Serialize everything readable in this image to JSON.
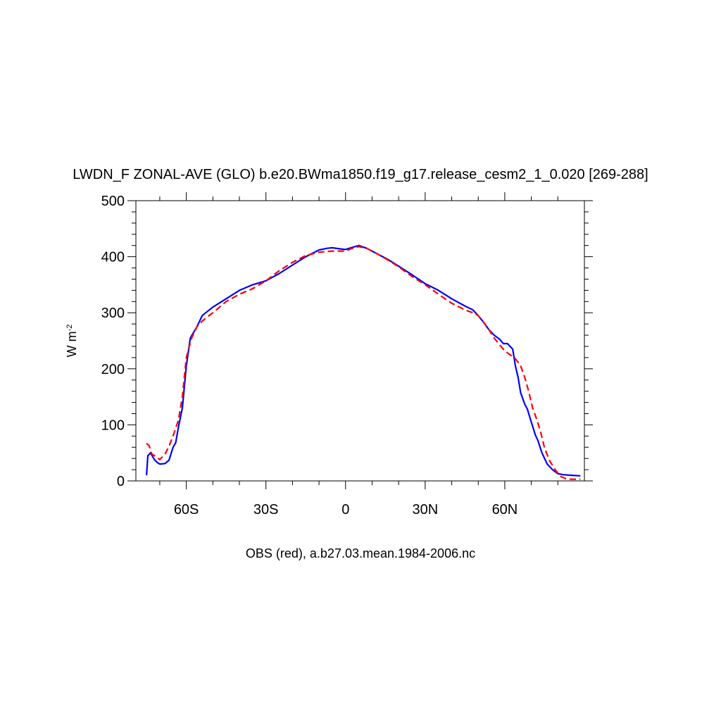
{
  "chart_data": {
    "type": "line",
    "title": "LWDN_F ZONAL-AVE (GLO) b.e20.BWma1850.f19_g17.release_cesm2_1_0.020 [269-288]",
    "ylabel": "W m",
    "ylabel_exponent": "-2",
    "xlabel": "OBS (red), a.b27.03.mean.1984-2006.nc",
    "xlim": [
      -79,
      90
    ],
    "ylim": [
      0,
      500
    ],
    "x_ticks": [
      {
        "value": -60,
        "label": "60S"
      },
      {
        "value": -30,
        "label": "30S"
      },
      {
        "value": 0,
        "label": "0"
      },
      {
        "value": 30,
        "label": "30N"
      },
      {
        "value": 60,
        "label": "60N"
      }
    ],
    "y_ticks": [
      {
        "value": 0,
        "label": "0"
      },
      {
        "value": 100,
        "label": "100"
      },
      {
        "value": 200,
        "label": "200"
      },
      {
        "value": 300,
        "label": "300"
      },
      {
        "value": 400,
        "label": "400"
      },
      {
        "value": 500,
        "label": "500"
      }
    ],
    "series": [
      {
        "color": "#0000ff",
        "dash": "solid",
        "x": [
          -75,
          -74.5,
          -73.5,
          -72,
          -71,
          -70,
          -68,
          -66.5,
          -65,
          -64,
          -63,
          -61.5,
          -60,
          -58.5,
          -56,
          -54,
          -50,
          -45,
          -40,
          -35,
          -30,
          -25,
          -20,
          -15,
          -10,
          -7,
          -5,
          -2,
          0,
          2,
          5,
          8,
          12,
          16,
          20,
          25,
          30,
          35,
          40,
          45,
          48,
          50,
          52,
          54,
          56,
          58,
          59.5,
          61,
          63,
          64,
          65,
          66,
          67.5,
          68.5,
          70,
          71.5,
          72.5,
          74,
          76,
          78,
          80,
          82,
          85,
          88.5
        ],
        "y": [
          10,
          45,
          50,
          38,
          33,
          30,
          31,
          37,
          60,
          68,
          95,
          130,
          205,
          255,
          275,
          295,
          310,
          325,
          340,
          350,
          357,
          370,
          385,
          400,
          412,
          415,
          416,
          414,
          413,
          416,
          420,
          415,
          405,
          395,
          383,
          368,
          352,
          340,
          325,
          312,
          305,
          295,
          283,
          270,
          260,
          253,
          245,
          245,
          235,
          205,
          185,
          157,
          137,
          128,
          105,
          82,
          72,
          50,
          30,
          20,
          13,
          11,
          10,
          9
        ]
      },
      {
        "color": "#ff0000",
        "dash": "dashed",
        "x": [
          -75,
          -74,
          -73,
          -72,
          -71,
          -70,
          -68,
          -66.5,
          -65,
          -63,
          -61.5,
          -60,
          -58,
          -56,
          -54,
          -52,
          -50,
          -45,
          -40,
          -35,
          -30,
          -25,
          -20,
          -15,
          -10,
          -5,
          -2,
          0,
          2,
          5,
          8,
          12,
          16,
          20,
          25,
          30,
          35,
          40,
          45,
          48,
          50,
          52,
          54,
          56,
          58,
          60,
          62,
          64,
          66,
          67.5,
          69,
          70.5,
          72,
          73.5,
          75,
          77,
          79,
          81,
          83,
          85,
          88.5
        ],
        "y": [
          67,
          63,
          48,
          45,
          42,
          38,
          48,
          62,
          80,
          108,
          150,
          220,
          255,
          275,
          285,
          293,
          300,
          320,
          333,
          343,
          357,
          375,
          390,
          402,
          408,
          410,
          410,
          410,
          414,
          418,
          415,
          405,
          394,
          382,
          365,
          350,
          333,
          317,
          305,
          300,
          295,
          283,
          270,
          255,
          243,
          232,
          225,
          218,
          205,
          185,
          160,
          130,
          110,
          88,
          58,
          35,
          20,
          8,
          4,
          3,
          3
        ]
      }
    ]
  }
}
